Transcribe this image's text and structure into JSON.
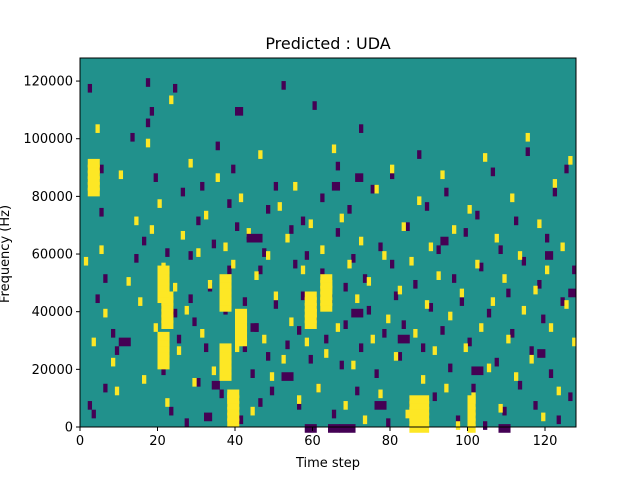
{
  "chart_data": {
    "type": "heatmap",
    "title": "Predicted : UDA",
    "xlabel": "Time step",
    "ylabel": "Frequency (Hz)",
    "xlim": [
      0,
      128
    ],
    "ylim": [
      0,
      128000
    ],
    "x_ticks": [
      0,
      20,
      40,
      60,
      80,
      100,
      120
    ],
    "y_ticks": [
      0,
      20000,
      40000,
      60000,
      80000,
      100000,
      120000
    ],
    "x_tick_labels": [
      "0",
      "20",
      "40",
      "60",
      "80",
      "100",
      "120"
    ],
    "y_tick_labels": [
      "0",
      "20000",
      "40000",
      "60000",
      "80000",
      "100000",
      "120000"
    ],
    "n_time_steps": 128,
    "n_freq_bins": 128,
    "colormap": "viridis",
    "background_class": 1,
    "class_colors": {
      "0": "#440154",
      "1": "#21918c",
      "2": "#fde725"
    },
    "cells_class0_xrange_y": [
      [
        6,
        6,
        14
      ],
      [
        10,
        12,
        30
      ],
      [
        32,
        33,
        4
      ],
      [
        34,
        35,
        15
      ],
      [
        43,
        46,
        66
      ],
      [
        52,
        54,
        18
      ],
      [
        58,
        60,
        0
      ],
      [
        64,
        66,
        0
      ],
      [
        67,
        70,
        0
      ],
      [
        76,
        78,
        8
      ],
      [
        82,
        84,
        31
      ],
      [
        70,
        72,
        40
      ],
      [
        93,
        94,
        65
      ],
      [
        101,
        103,
        20
      ],
      [
        108,
        110,
        0
      ],
      [
        118,
        119,
        26
      ],
      [
        40,
        41,
        110
      ],
      [
        44,
        45,
        35
      ],
      [
        65,
        66,
        84
      ],
      [
        71,
        72,
        87
      ],
      [
        120,
        121,
        60
      ],
      [
        126,
        127,
        47
      ]
    ],
    "cells_class0": [
      [
        2,
        8
      ],
      [
        2,
        118
      ],
      [
        3,
        5
      ],
      [
        4,
        45
      ],
      [
        5,
        90
      ],
      [
        5,
        75
      ],
      [
        6,
        52
      ],
      [
        8,
        33
      ],
      [
        9,
        27
      ],
      [
        13,
        101
      ],
      [
        14,
        59
      ],
      [
        16,
        65
      ],
      [
        17,
        120
      ],
      [
        17,
        106
      ],
      [
        18,
        110
      ],
      [
        19,
        87
      ],
      [
        21,
        20
      ],
      [
        22,
        61
      ],
      [
        23,
        6
      ],
      [
        24,
        40
      ],
      [
        24,
        118
      ],
      [
        25,
        31
      ],
      [
        26,
        82
      ],
      [
        27,
        2
      ],
      [
        28,
        60
      ],
      [
        28,
        45
      ],
      [
        29,
        37
      ],
      [
        30,
        16
      ],
      [
        30,
        72
      ],
      [
        31,
        84
      ],
      [
        32,
        28
      ],
      [
        33,
        49
      ],
      [
        34,
        64
      ],
      [
        35,
        98
      ],
      [
        36,
        12
      ],
      [
        37,
        41
      ],
      [
        38,
        55
      ],
      [
        38,
        78
      ],
      [
        39,
        90
      ],
      [
        40,
        70
      ],
      [
        41,
        3
      ],
      [
        42,
        28
      ],
      [
        42,
        44
      ],
      [
        43,
        67
      ],
      [
        44,
        19
      ],
      [
        45,
        35
      ],
      [
        46,
        9
      ],
      [
        46,
        55
      ],
      [
        47,
        61
      ],
      [
        48,
        76
      ],
      [
        48,
        25
      ],
      [
        49,
        13
      ],
      [
        50,
        84
      ],
      [
        50,
        43
      ],
      [
        52,
        119
      ],
      [
        53,
        29
      ],
      [
        54,
        69
      ],
      [
        55,
        57
      ],
      [
        56,
        34
      ],
      [
        56,
        8
      ],
      [
        57,
        72
      ],
      [
        57,
        46
      ],
      [
        58,
        60
      ],
      [
        59,
        24
      ],
      [
        60,
        38
      ],
      [
        60,
        112
      ],
      [
        61,
        14
      ],
      [
        62,
        54
      ],
      [
        62,
        80
      ],
      [
        63,
        31
      ],
      [
        64,
        45
      ],
      [
        65,
        5
      ],
      [
        66,
        68
      ],
      [
        66,
        91
      ],
      [
        67,
        22
      ],
      [
        68,
        49
      ],
      [
        68,
        36
      ],
      [
        69,
        76
      ],
      [
        70,
        59
      ],
      [
        71,
        13
      ],
      [
        72,
        28
      ],
      [
        72,
        104
      ],
      [
        73,
        52
      ],
      [
        74,
        41
      ],
      [
        75,
        83
      ],
      [
        76,
        19
      ],
      [
        77,
        63
      ],
      [
        78,
        33
      ],
      [
        79,
        2
      ],
      [
        80,
        57
      ],
      [
        80,
        88
      ],
      [
        81,
        46
      ],
      [
        82,
        25
      ],
      [
        83,
        36
      ],
      [
        84,
        70
      ],
      [
        85,
        9
      ],
      [
        86,
        50
      ],
      [
        87,
        95
      ],
      [
        88,
        28
      ],
      [
        89,
        77
      ],
      [
        90,
        42
      ],
      [
        91,
        11
      ],
      [
        92,
        62
      ],
      [
        93,
        34
      ],
      [
        94,
        82
      ],
      [
        95,
        21
      ],
      [
        96,
        52
      ],
      [
        97,
        3
      ],
      [
        98,
        44
      ],
      [
        99,
        68
      ],
      [
        100,
        30
      ],
      [
        101,
        14
      ],
      [
        102,
        74
      ],
      [
        103,
        56
      ],
      [
        104,
        1
      ],
      [
        105,
        40
      ],
      [
        106,
        89
      ],
      [
        107,
        23
      ],
      [
        108,
        62
      ],
      [
        109,
        6
      ],
      [
        110,
        47
      ],
      [
        111,
        33
      ],
      [
        112,
        72
      ],
      [
        113,
        15
      ],
      [
        114,
        58
      ],
      [
        115,
        96
      ],
      [
        116,
        27
      ],
      [
        117,
        8
      ],
      [
        118,
        50
      ],
      [
        119,
        38
      ],
      [
        120,
        66
      ],
      [
        121,
        19
      ],
      [
        122,
        82
      ],
      [
        123,
        3
      ],
      [
        124,
        44
      ],
      [
        125,
        90
      ],
      [
        126,
        11
      ],
      [
        127,
        55
      ]
    ],
    "cells_class2_xrange_y": [
      [
        20,
        22,
        22
      ],
      [
        21,
        23,
        36
      ],
      [
        38,
        40,
        2
      ],
      [
        36,
        38,
        18
      ],
      [
        40,
        42,
        30
      ],
      [
        58,
        60,
        36
      ],
      [
        62,
        64,
        42
      ],
      [
        100,
        101,
        0
      ],
      [
        85,
        89,
        0
      ],
      [
        2,
        4,
        82
      ],
      [
        20,
        22,
        45
      ],
      [
        36,
        38,
        42
      ]
    ],
    "cells_class2": [
      [
        1,
        58
      ],
      [
        3,
        30
      ],
      [
        4,
        104
      ],
      [
        5,
        62
      ],
      [
        6,
        40
      ],
      [
        8,
        23
      ],
      [
        9,
        13
      ],
      [
        10,
        88
      ],
      [
        12,
        51
      ],
      [
        14,
        72
      ],
      [
        15,
        44
      ],
      [
        16,
        17
      ],
      [
        17,
        99
      ],
      [
        18,
        69
      ],
      [
        19,
        35
      ],
      [
        20,
        78
      ],
      [
        21,
        56
      ],
      [
        22,
        9
      ],
      [
        23,
        114
      ],
      [
        24,
        49
      ],
      [
        25,
        27
      ],
      [
        26,
        67
      ],
      [
        27,
        41
      ],
      [
        28,
        92
      ],
      [
        29,
        16
      ],
      [
        30,
        61
      ],
      [
        31,
        33
      ],
      [
        32,
        74
      ],
      [
        33,
        50
      ],
      [
        34,
        20
      ],
      [
        35,
        87
      ],
      [
        36,
        44
      ],
      [
        37,
        63
      ],
      [
        38,
        11
      ],
      [
        39,
        57
      ],
      [
        40,
        28
      ],
      [
        41,
        80
      ],
      [
        42,
        39
      ],
      [
        43,
        68
      ],
      [
        44,
        6
      ],
      [
        45,
        53
      ],
      [
        46,
        95
      ],
      [
        47,
        31
      ],
      [
        48,
        60
      ],
      [
        49,
        18
      ],
      [
        50,
        46
      ],
      [
        51,
        77
      ],
      [
        52,
        24
      ],
      [
        53,
        66
      ],
      [
        54,
        37
      ],
      [
        55,
        84
      ],
      [
        56,
        10
      ],
      [
        57,
        55
      ],
      [
        58,
        30
      ],
      [
        59,
        71
      ],
      [
        60,
        40
      ],
      [
        61,
        14
      ],
      [
        62,
        62
      ],
      [
        63,
        26
      ],
      [
        64,
        49
      ],
      [
        65,
        97
      ],
      [
        66,
        35
      ],
      [
        67,
        73
      ],
      [
        68,
        8
      ],
      [
        69,
        57
      ],
      [
        70,
        22
      ],
      [
        71,
        45
      ],
      [
        72,
        65
      ],
      [
        73,
        3
      ],
      [
        74,
        51
      ],
      [
        75,
        31
      ],
      [
        76,
        83
      ],
      [
        77,
        12
      ],
      [
        78,
        60
      ],
      [
        79,
        38
      ],
      [
        80,
        90
      ],
      [
        81,
        25
      ],
      [
        82,
        48
      ],
      [
        83,
        70
      ],
      [
        84,
        5
      ],
      [
        85,
        58
      ],
      [
        86,
        33
      ],
      [
        87,
        79
      ],
      [
        88,
        17
      ],
      [
        89,
        43
      ],
      [
        90,
        63
      ],
      [
        91,
        27
      ],
      [
        92,
        53
      ],
      [
        93,
        88
      ],
      [
        94,
        14
      ],
      [
        95,
        39
      ],
      [
        96,
        69
      ],
      [
        97,
        1
      ],
      [
        98,
        47
      ],
      [
        99,
        28
      ],
      [
        100,
        76
      ],
      [
        101,
        11
      ],
      [
        102,
        57
      ],
      [
        103,
        35
      ],
      [
        104,
        94
      ],
      [
        105,
        21
      ],
      [
        106,
        44
      ],
      [
        107,
        66
      ],
      [
        108,
        7
      ],
      [
        109,
        52
      ],
      [
        110,
        31
      ],
      [
        111,
        80
      ],
      [
        112,
        18
      ],
      [
        113,
        60
      ],
      [
        114,
        41
      ],
      [
        115,
        101
      ],
      [
        116,
        24
      ],
      [
        117,
        48
      ],
      [
        118,
        71
      ],
      [
        119,
        4
      ],
      [
        120,
        55
      ],
      [
        121,
        35
      ],
      [
        122,
        85
      ],
      [
        123,
        13
      ],
      [
        124,
        63
      ],
      [
        125,
        43
      ],
      [
        126,
        93
      ],
      [
        127,
        30
      ]
    ]
  }
}
